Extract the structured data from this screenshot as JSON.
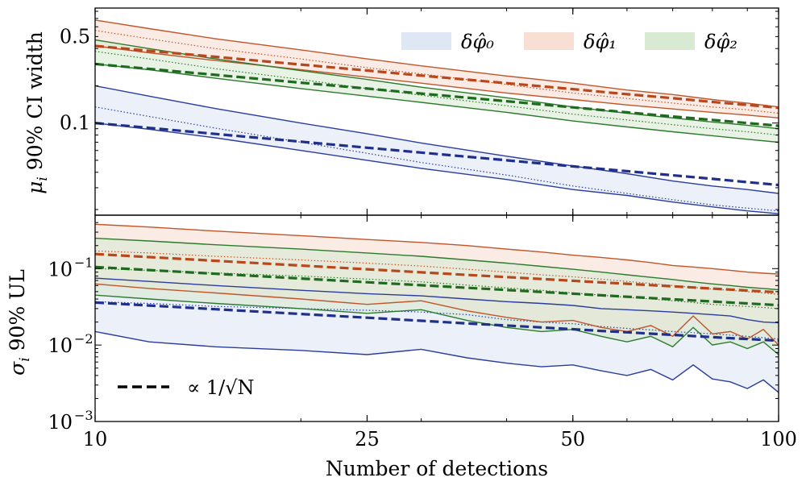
{
  "chart_data": [
    {
      "type": "line",
      "panel": "top",
      "ylabel": "μ_i 90% CI width",
      "yscale": "log",
      "ylim": [
        0.018,
        0.85
      ],
      "xscale": "log",
      "xlim": [
        10,
        100
      ],
      "yticks": [
        0.1,
        0.5
      ],
      "ytick_labels": [
        "0.1",
        "0.5"
      ],
      "x": [
        10,
        12,
        15,
        20,
        25,
        30,
        40,
        50,
        60,
        70,
        80,
        90,
        100
      ],
      "legend": {
        "position": "top-right",
        "entries": [
          "δφ̂₀",
          "δφ̂₁",
          "δφ̂₂"
        ]
      },
      "series": [
        {
          "name": "δφ̂₀",
          "color": "#2a3c9e",
          "fill": "#dfe6f4",
          "upper": [
            0.2,
            0.165,
            0.131,
            0.1,
            0.082,
            0.069,
            0.054,
            0.045,
            0.039,
            0.034,
            0.031,
            0.029,
            0.027
          ],
          "median": [
            0.135,
            0.113,
            0.091,
            0.07,
            0.057,
            0.048,
            0.038,
            0.031,
            0.027,
            0.024,
            0.0218,
            0.0205,
            0.0195
          ],
          "lower": [
            0.1,
            0.089,
            0.076,
            0.06,
            0.05,
            0.043,
            0.035,
            0.029,
            0.026,
            0.023,
            0.021,
            0.0195,
            0.0185
          ],
          "scaling": [
            0.1,
            0.0913,
            0.0816,
            0.0707,
            0.0632,
            0.0577,
            0.05,
            0.0447,
            0.0408,
            0.0378,
            0.0354,
            0.0333,
            0.0316
          ]
        },
        {
          "name": "δφ̂₁",
          "color": "#c0552a",
          "fill": "#f9ded3",
          "upper": [
            0.68,
            0.58,
            0.48,
            0.39,
            0.33,
            0.29,
            0.24,
            0.21,
            0.185,
            0.17,
            0.155,
            0.145,
            0.135
          ],
          "median": [
            0.56,
            0.48,
            0.4,
            0.33,
            0.28,
            0.25,
            0.205,
            0.175,
            0.158,
            0.145,
            0.135,
            0.128,
            0.12
          ],
          "lower": [
            0.42,
            0.37,
            0.32,
            0.27,
            0.235,
            0.21,
            0.175,
            0.155,
            0.14,
            0.13,
            0.122,
            0.116,
            0.11
          ],
          "scaling": [
            0.42,
            0.383,
            0.343,
            0.297,
            0.266,
            0.242,
            0.21,
            0.188,
            0.171,
            0.159,
            0.148,
            0.14,
            0.133
          ]
        },
        {
          "name": "δφ̂₂",
          "color": "#2d7a2d",
          "fill": "#d9ead3",
          "upper": [
            0.47,
            0.4,
            0.33,
            0.265,
            0.225,
            0.195,
            0.16,
            0.135,
            0.12,
            0.11,
            0.102,
            0.096,
            0.09
          ],
          "median": [
            0.38,
            0.33,
            0.275,
            0.225,
            0.19,
            0.168,
            0.138,
            0.118,
            0.106,
            0.097,
            0.09,
            0.085,
            0.08
          ],
          "lower": [
            0.3,
            0.27,
            0.23,
            0.19,
            0.165,
            0.147,
            0.122,
            0.104,
            0.093,
            0.085,
            0.079,
            0.074,
            0.07
          ],
          "scaling": [
            0.3,
            0.274,
            0.245,
            0.212,
            0.19,
            0.173,
            0.15,
            0.134,
            0.122,
            0.113,
            0.106,
            0.1,
            0.095
          ]
        }
      ]
    },
    {
      "type": "line",
      "panel": "bottom",
      "ylabel": "σ_i 90% UL",
      "xlabel": "Number of detections",
      "yscale": "log",
      "ylim": [
        0.001,
        0.5
      ],
      "xscale": "log",
      "xlim": [
        10,
        100
      ],
      "xticks": [
        10,
        25,
        50,
        100
      ],
      "xtick_labels": [
        "10",
        "25",
        "50",
        "100"
      ],
      "yticks": [
        0.001,
        0.01,
        0.1
      ],
      "ytick_mantissa": "10",
      "ytick_exponents": [
        "−3",
        "−2",
        "−1"
      ],
      "legend": {
        "position": "bottom-left",
        "entries": [
          "∝ 1/√N"
        ]
      },
      "x": [
        10,
        12,
        15,
        20,
        25,
        30,
        35,
        40,
        45,
        50,
        55,
        60,
        65,
        70,
        75,
        80,
        85,
        90,
        95,
        100
      ],
      "series": [
        {
          "name": "δφ̂₀",
          "color": "#2a3c9e",
          "fill": "#dfe6f4",
          "upper": [
            0.075,
            0.068,
            0.06,
            0.052,
            0.047,
            0.044,
            0.04,
            0.037,
            0.035,
            0.033,
            0.03,
            0.029,
            0.028,
            0.027,
            0.026,
            0.025,
            0.024,
            0.0215,
            0.02,
            0.0195
          ],
          "median": [
            0.037,
            0.035,
            0.032,
            0.03,
            0.0285,
            0.027,
            0.025,
            0.0215,
            0.02,
            0.019,
            0.0175,
            0.0165,
            0.0158,
            0.015,
            0.0145,
            0.014,
            0.0135,
            0.013,
            0.0125,
            0.012
          ],
          "lower": [
            0.015,
            0.011,
            0.0095,
            0.0085,
            0.0075,
            0.0088,
            0.0068,
            0.0058,
            0.0052,
            0.0055,
            0.0046,
            0.004,
            0.0048,
            0.0035,
            0.0055,
            0.0036,
            0.0033,
            0.0027,
            0.0035,
            0.0024
          ],
          "scaling": [
            0.036,
            0.0329,
            0.0294,
            0.0255,
            0.0228,
            0.0208,
            0.0192,
            0.018,
            0.017,
            0.0161,
            0.0153,
            0.0147,
            0.0141,
            0.0136,
            0.0131,
            0.0127,
            0.0123,
            0.012,
            0.0117,
            0.0114
          ]
        },
        {
          "name": "δφ̂₁",
          "color": "#c0552a",
          "fill": "#f9ded3",
          "upper": [
            0.38,
            0.35,
            0.31,
            0.27,
            0.24,
            0.22,
            0.2,
            0.18,
            0.165,
            0.15,
            0.14,
            0.13,
            0.12,
            0.11,
            0.105,
            0.1,
            0.095,
            0.09,
            0.087,
            0.085
          ],
          "median": [
            0.17,
            0.16,
            0.145,
            0.13,
            0.118,
            0.108,
            0.098,
            0.09,
            0.083,
            0.078,
            0.073,
            0.068,
            0.064,
            0.06,
            0.057,
            0.054,
            0.052,
            0.05,
            0.048,
            0.046
          ],
          "lower": [
            0.063,
            0.055,
            0.048,
            0.04,
            0.034,
            0.038,
            0.028,
            0.023,
            0.02,
            0.021,
            0.017,
            0.015,
            0.018,
            0.013,
            0.024,
            0.014,
            0.015,
            0.012,
            0.016,
            0.01
          ],
          "scaling": [
            0.155,
            0.1415,
            0.1266,
            0.1096,
            0.098,
            0.0895,
            0.0828,
            0.0775,
            0.0731,
            0.0693,
            0.0661,
            0.0633,
            0.0608,
            0.0586,
            0.0566,
            0.0548,
            0.0532,
            0.0517,
            0.0503,
            0.049
          ]
        },
        {
          "name": "δφ̂₂",
          "color": "#2d7a2d",
          "fill": "#d9ead3",
          "upper": [
            0.25,
            0.23,
            0.205,
            0.18,
            0.16,
            0.145,
            0.13,
            0.118,
            0.107,
            0.098,
            0.09,
            0.083,
            0.077,
            0.072,
            0.067,
            0.063,
            0.06,
            0.057,
            0.055,
            0.053
          ],
          "median": [
            0.1,
            0.095,
            0.088,
            0.08,
            0.073,
            0.067,
            0.061,
            0.056,
            0.052,
            0.048,
            0.045,
            0.042,
            0.04,
            0.038,
            0.036,
            0.034,
            0.033,
            0.032,
            0.031,
            0.03
          ],
          "lower": [
            0.045,
            0.04,
            0.035,
            0.03,
            0.026,
            0.029,
            0.021,
            0.017,
            0.015,
            0.016,
            0.013,
            0.011,
            0.013,
            0.0095,
            0.017,
            0.01,
            0.011,
            0.009,
            0.011,
            0.0075
          ],
          "scaling": [
            0.105,
            0.0958,
            0.0857,
            0.0742,
            0.0664,
            0.0606,
            0.0561,
            0.0525,
            0.0495,
            0.047,
            0.0448,
            0.0429,
            0.0412,
            0.0397,
            0.0383,
            0.0371,
            0.036,
            0.035,
            0.0341,
            0.0332
          ]
        }
      ]
    }
  ]
}
